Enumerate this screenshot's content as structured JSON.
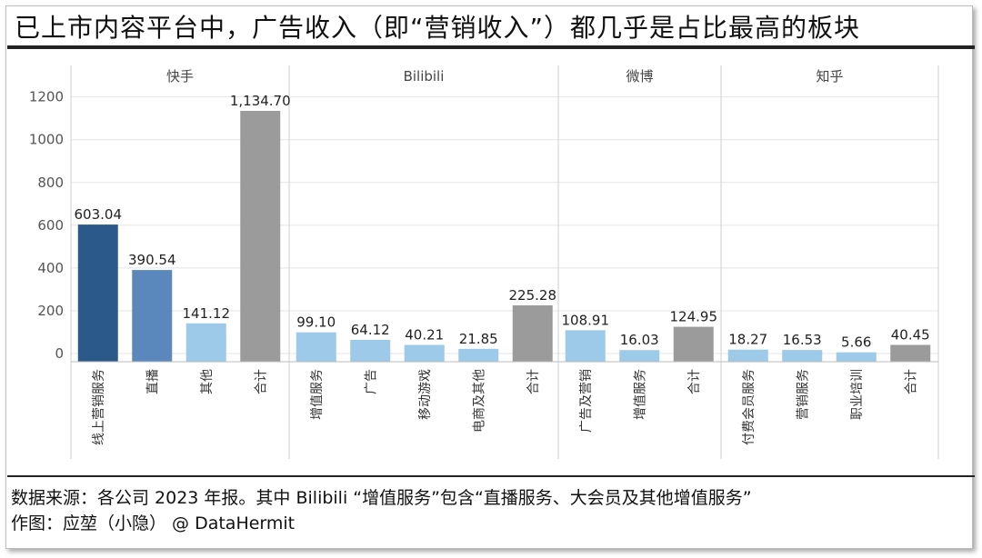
{
  "title": "已上市内容平台中，广告收入（即“营销收入”）都几乎是占比最高的板块",
  "source": "数据来源：各公司 2023 年报。其中 Bilibili “增值服务”包含“直播服务、大会员及其他增值服务”",
  "credit": "作图：应堃（小隐） @ DataHermit",
  "colors": {
    "dark_blue": "#2b5a8a",
    "mid_blue": "#5b88bc",
    "light_blue": "#9ccae8",
    "gray": "#9b9b9b",
    "grid": "#e4e4e4",
    "divider": "#cfcfcf"
  },
  "chart_data": {
    "type": "bar",
    "ylim": [
      0,
      1300
    ],
    "yticks": [
      0,
      200,
      400,
      600,
      800,
      1000,
      1200
    ],
    "grid": true,
    "panels": [
      {
        "name": "快手",
        "categories": [
          "线上营销服务",
          "直播",
          "其他",
          "合计"
        ],
        "values": [
          603.04,
          390.54,
          141.12,
          1134.7
        ],
        "labels": [
          "603.04",
          "390.54",
          "141.12",
          "1,134.70"
        ],
        "colors": [
          "#2b5a8a",
          "#5b88bc",
          "#9ccae8",
          "#9b9b9b"
        ]
      },
      {
        "name": "Bilibili",
        "categories": [
          "增值服务",
          "广告",
          "移动游戏",
          "电商及其他",
          "合计"
        ],
        "values": [
          99.1,
          64.12,
          40.21,
          21.85,
          225.28
        ],
        "labels": [
          "99.10",
          "64.12",
          "40.21",
          "21.85",
          "225.28"
        ],
        "colors": [
          "#9ccae8",
          "#9ccae8",
          "#9ccae8",
          "#9ccae8",
          "#9b9b9b"
        ]
      },
      {
        "name": "微博",
        "categories": [
          "广告及营销",
          "增值服务",
          "合计"
        ],
        "values": [
          108.91,
          16.03,
          124.95
        ],
        "labels": [
          "108.91",
          "16.03",
          "124.95"
        ],
        "colors": [
          "#9ccae8",
          "#9ccae8",
          "#9b9b9b"
        ]
      },
      {
        "name": "知乎",
        "categories": [
          "付费会员服务",
          "营销服务",
          "职业培训",
          "合计"
        ],
        "values": [
          18.27,
          16.53,
          5.66,
          40.45
        ],
        "labels": [
          "18.27",
          "16.53",
          "5.66",
          "40.45"
        ],
        "colors": [
          "#9ccae8",
          "#9ccae8",
          "#9ccae8",
          "#9b9b9b"
        ]
      }
    ]
  }
}
